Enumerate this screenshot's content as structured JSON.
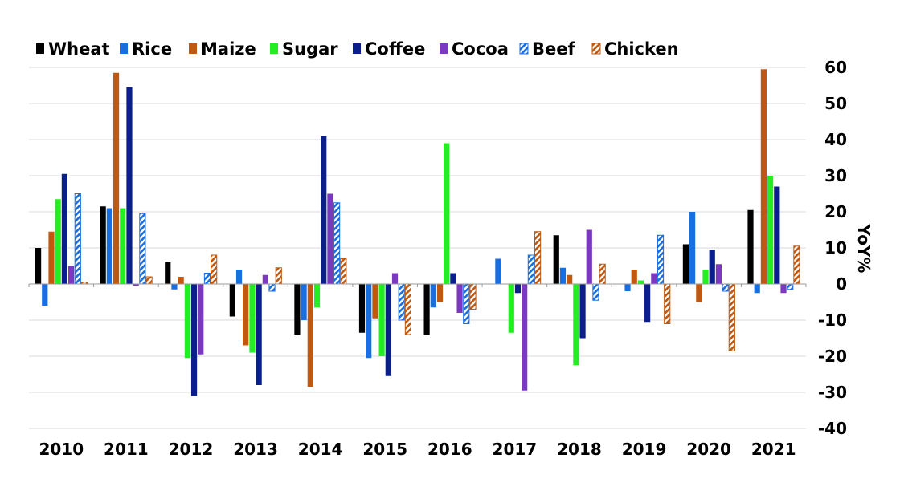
{
  "chart_data": {
    "type": "bar",
    "title": "",
    "xlabel": "",
    "ylabel": "YoY%",
    "ylim": [
      -40,
      60
    ],
    "yticks": [
      -40,
      -30,
      -20,
      -10,
      0,
      10,
      20,
      30,
      40,
      50,
      60
    ],
    "grid": true,
    "legend_position": "top",
    "categories": [
      "2010",
      "2011",
      "2012",
      "2013",
      "2014",
      "2015",
      "2016",
      "2017",
      "2018",
      "2019",
      "2020",
      "2021"
    ],
    "series": [
      {
        "name": "Wheat",
        "color": "#000000",
        "pattern": "solid",
        "values": [
          10,
          21.5,
          6,
          -9,
          -14,
          -13.5,
          -14,
          0,
          13.5,
          0,
          11,
          20.5
        ]
      },
      {
        "name": "Rice",
        "color": "#1a6fe0",
        "pattern": "solid",
        "values": [
          -6,
          21,
          -1.5,
          4,
          -10,
          -20.5,
          -6.5,
          7,
          4.5,
          -2,
          20,
          -2.5
        ]
      },
      {
        "name": "Maize",
        "color": "#c0580f",
        "pattern": "solid",
        "values": [
          14.5,
          58.5,
          2,
          -17,
          -28.5,
          -9.5,
          -5,
          0,
          2.5,
          4,
          -5,
          59.5
        ]
      },
      {
        "name": "Sugar",
        "color": "#22ee22",
        "pattern": "solid",
        "values": [
          23.5,
          21,
          -20.5,
          -19,
          -6.5,
          -20,
          39,
          -13.5,
          -22.5,
          1,
          4,
          30
        ]
      },
      {
        "name": "Coffee",
        "color": "#0a1f8a",
        "pattern": "solid",
        "values": [
          30.5,
          54.5,
          -31,
          -28,
          41,
          -25.5,
          3,
          -2.5,
          -15,
          -10.5,
          9.5,
          27
        ]
      },
      {
        "name": "Cocoa",
        "color": "#7b38c0",
        "pattern": "solid",
        "values": [
          5,
          -0.5,
          -19.5,
          2.5,
          25,
          3,
          -8,
          -29.5,
          15,
          3,
          5.5,
          -2.5
        ]
      },
      {
        "name": "Beef",
        "color": "#1a6fe0",
        "pattern": "hatched",
        "values": [
          25,
          19.5,
          3,
          -2,
          22.5,
          -10,
          -11,
          8,
          -4.5,
          13.5,
          -2,
          -1.5
        ]
      },
      {
        "name": "Chicken",
        "color": "#c0580f",
        "pattern": "hatched",
        "values": [
          0.5,
          2,
          8,
          4.5,
          7,
          -14,
          -7,
          14.5,
          5.5,
          -11,
          -18.5,
          10.5
        ]
      }
    ]
  }
}
